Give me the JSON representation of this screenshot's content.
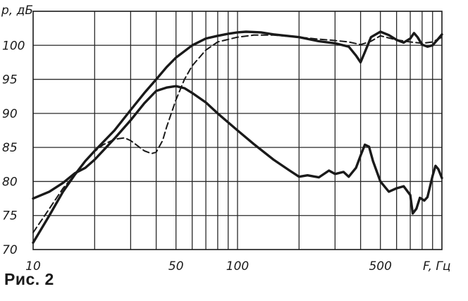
{
  "caption": "Рис. 2",
  "chart_data": {
    "type": "line",
    "xlabel": "F, Гц",
    "ylabel": "p, дБ",
    "xscale": "log",
    "xlim": [
      10,
      1000
    ],
    "ylim": [
      70,
      105
    ],
    "x_tick_labels": [
      {
        "value": 10,
        "label": "10"
      },
      {
        "value": 50,
        "label": "50"
      },
      {
        "value": 100,
        "label": "100"
      },
      {
        "value": 500,
        "label": "500"
      }
    ],
    "y_tick_labels": [
      {
        "value": 70,
        "label": "70"
      },
      {
        "value": 75,
        "label": "75"
      },
      {
        "value": 80,
        "label": "80"
      },
      {
        "value": 85,
        "label": "85"
      },
      {
        "value": 90,
        "label": "90"
      },
      {
        "value": 95,
        "label": "95"
      },
      {
        "value": 100,
        "label": "100"
      }
    ],
    "grid": true,
    "series": [
      {
        "style": "solid-thick",
        "color": "#1a1a1a",
        "points": [
          [
            10,
            71
          ],
          [
            12,
            75
          ],
          [
            14,
            78.5
          ],
          [
            16,
            81
          ],
          [
            18,
            83
          ],
          [
            20,
            84.5
          ],
          [
            25,
            87.5
          ],
          [
            30,
            90.5
          ],
          [
            35,
            93
          ],
          [
            40,
            95
          ],
          [
            45,
            96.8
          ],
          [
            50,
            98.2
          ],
          [
            60,
            100
          ],
          [
            70,
            101
          ],
          [
            80,
            101.4
          ],
          [
            90,
            101.7
          ],
          [
            100,
            101.9
          ],
          [
            110,
            102
          ],
          [
            130,
            101.9
          ],
          [
            150,
            101.6
          ],
          [
            200,
            101.2
          ],
          [
            250,
            100.6
          ],
          [
            300,
            100.3
          ],
          [
            350,
            99.8
          ],
          [
            380,
            98.5
          ],
          [
            400,
            97.5
          ],
          [
            420,
            99
          ],
          [
            450,
            101.2
          ],
          [
            500,
            102
          ],
          [
            550,
            101.5
          ],
          [
            600,
            100.8
          ],
          [
            650,
            100.4
          ],
          [
            700,
            101
          ],
          [
            730,
            101.8
          ],
          [
            760,
            101.2
          ],
          [
            800,
            100.1
          ],
          [
            850,
            99.8
          ],
          [
            900,
            100
          ],
          [
            950,
            100.8
          ],
          [
            1000,
            101.6
          ]
        ]
      },
      {
        "style": "dashed",
        "color": "#1a1a1a",
        "points": [
          [
            10,
            72.5
          ],
          [
            12,
            76
          ],
          [
            14,
            79
          ],
          [
            16,
            81
          ],
          [
            18,
            83
          ],
          [
            20,
            84.4
          ],
          [
            22,
            85.4
          ],
          [
            25,
            86.2
          ],
          [
            28,
            86.4
          ],
          [
            30,
            86
          ],
          [
            35,
            84.5
          ],
          [
            38,
            84.1
          ],
          [
            40,
            84.3
          ],
          [
            43,
            86
          ],
          [
            45,
            88
          ],
          [
            50,
            92
          ],
          [
            55,
            95
          ],
          [
            60,
            97
          ],
          [
            70,
            99.3
          ],
          [
            80,
            100.5
          ],
          [
            100,
            101.2
          ],
          [
            120,
            101.5
          ],
          [
            150,
            101.5
          ],
          [
            200,
            101.2
          ],
          [
            250,
            100.9
          ],
          [
            300,
            100.7
          ],
          [
            350,
            100.5
          ],
          [
            400,
            100.1
          ],
          [
            450,
            100.6
          ],
          [
            500,
            101.4
          ],
          [
            600,
            100.8
          ],
          [
            700,
            100.5
          ],
          [
            800,
            100.3
          ],
          [
            900,
            100.5
          ],
          [
            1000,
            101.2
          ]
        ]
      },
      {
        "style": "solid-thick",
        "color": "#1a1a1a",
        "points": [
          [
            10,
            77.5
          ],
          [
            12,
            78.5
          ],
          [
            14,
            79.8
          ],
          [
            16,
            81.2
          ],
          [
            18,
            82
          ],
          [
            20,
            83.2
          ],
          [
            25,
            86.3
          ],
          [
            30,
            89
          ],
          [
            35,
            91.5
          ],
          [
            40,
            93.3
          ],
          [
            45,
            93.8
          ],
          [
            50,
            94
          ],
          [
            55,
            93.7
          ],
          [
            60,
            93
          ],
          [
            70,
            91.6
          ],
          [
            80,
            90
          ],
          [
            100,
            87.5
          ],
          [
            120,
            85.5
          ],
          [
            150,
            83.2
          ],
          [
            180,
            81.6
          ],
          [
            200,
            80.7
          ],
          [
            220,
            80.9
          ],
          [
            250,
            80.6
          ],
          [
            280,
            81.6
          ],
          [
            300,
            81.1
          ],
          [
            330,
            81.4
          ],
          [
            350,
            80.7
          ],
          [
            380,
            82
          ],
          [
            400,
            83.8
          ],
          [
            420,
            85.4
          ],
          [
            440,
            85.1
          ],
          [
            460,
            83
          ],
          [
            500,
            80
          ],
          [
            550,
            78.5
          ],
          [
            600,
            79
          ],
          [
            650,
            79.3
          ],
          [
            700,
            78
          ],
          [
            720,
            75.3
          ],
          [
            750,
            76
          ],
          [
            780,
            77.6
          ],
          [
            820,
            77.2
          ],
          [
            850,
            77.7
          ],
          [
            900,
            80.8
          ],
          [
            930,
            82.3
          ],
          [
            960,
            81.8
          ],
          [
            1000,
            80.5
          ]
        ]
      }
    ]
  }
}
